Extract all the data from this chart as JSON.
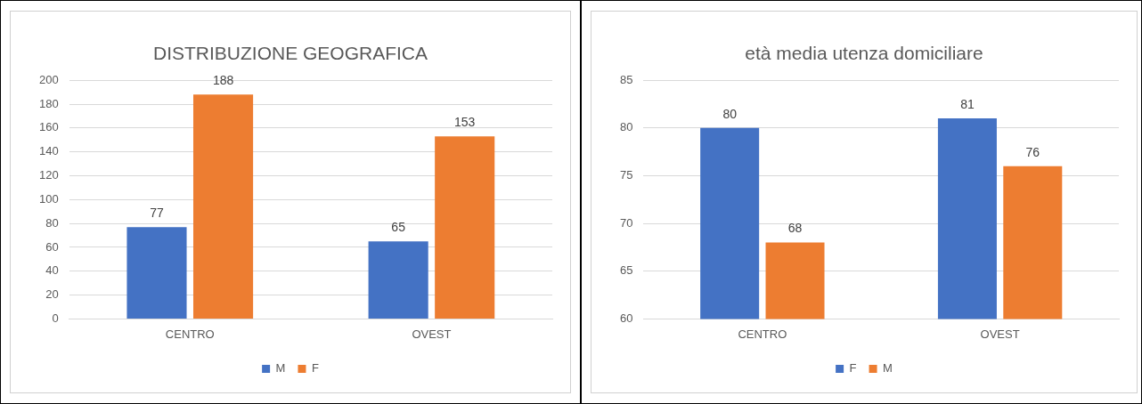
{
  "chart_data": [
    {
      "type": "bar",
      "title": "DISTRIBUZIONE GEOGRAFICA",
      "categories": [
        "CENTRO",
        "OVEST"
      ],
      "series": [
        {
          "name": "M",
          "color": "#4472c4",
          "values": [
            77,
            65
          ]
        },
        {
          "name": "F",
          "color": "#ed7d31",
          "values": [
            188,
            153
          ]
        }
      ],
      "ylim": [
        0,
        200
      ],
      "yticks": [
        0,
        20,
        40,
        60,
        80,
        100,
        120,
        140,
        160,
        180,
        200
      ],
      "grid": "y",
      "legend": "bottom",
      "data_labels": true
    },
    {
      "type": "bar",
      "title": "età media utenza domiciliare",
      "categories": [
        "CENTRO",
        "OVEST"
      ],
      "series": [
        {
          "name": "F",
          "color": "#4472c4",
          "values": [
            80,
            81
          ]
        },
        {
          "name": "M",
          "color": "#ed7d31",
          "values": [
            68,
            76
          ]
        }
      ],
      "ylim": [
        60,
        85
      ],
      "yticks": [
        60,
        65,
        70,
        75,
        80,
        85
      ],
      "grid": "y",
      "legend": "bottom",
      "data_labels": true
    }
  ]
}
